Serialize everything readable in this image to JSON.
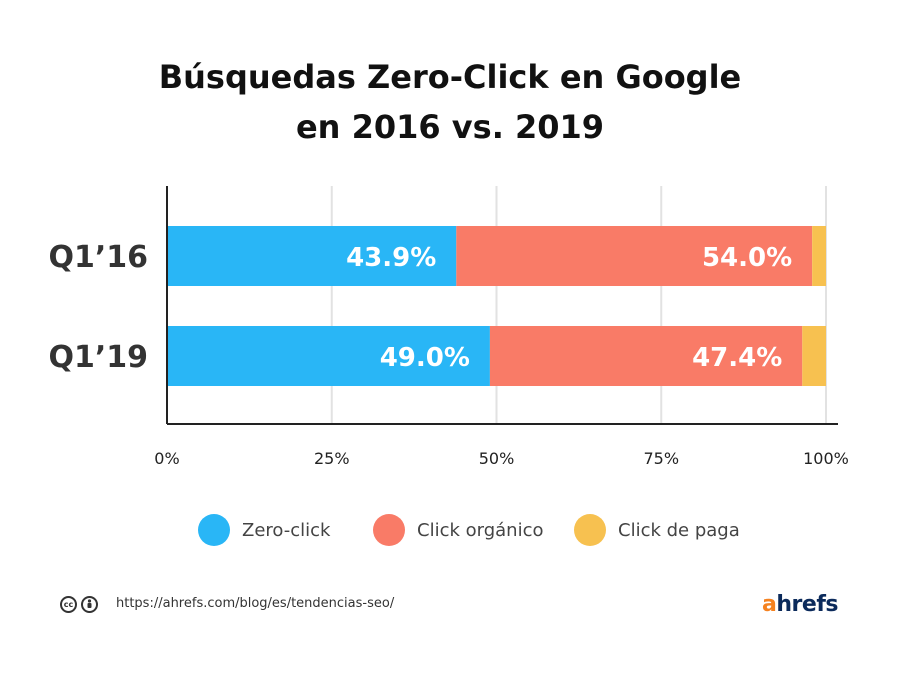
{
  "title_lines": [
    "Búsquedas Zero-Click en Google",
    "en 2016 vs. 2019"
  ],
  "chart_data": {
    "type": "bar",
    "orientation": "horizontal",
    "stacked": true,
    "title": "Búsquedas Zero-Click en Google en 2016 vs. 2019",
    "categories": [
      "Q1’16",
      "Q1’19"
    ],
    "series": [
      {
        "name": "Zero-click",
        "color": "#29b6f6",
        "values": [
          43.9,
          49.0
        ],
        "labels": [
          "43.9%",
          "49.0%"
        ]
      },
      {
        "name": "Click orgánico",
        "color": "#f97b67",
        "values": [
          54.0,
          47.4
        ],
        "labels": [
          "54.0%",
          "47.4%"
        ]
      },
      {
        "name": "Click de paga",
        "color": "#f7c150",
        "values": [
          2.1,
          3.6
        ],
        "labels": [
          "",
          ""
        ]
      }
    ],
    "xlim": [
      0,
      100
    ],
    "xticks": [
      0,
      25,
      50,
      75,
      100
    ],
    "xtick_labels": [
      "0%",
      "25%",
      "50%",
      "75%",
      "100%"
    ],
    "grid": true,
    "legend_position": "bottom"
  },
  "legend": [
    {
      "label": "Zero-click",
      "color": "#29b6f6"
    },
    {
      "label": "Click orgánico",
      "color": "#f97b67"
    },
    {
      "label": "Click de paga",
      "color": "#f7c150"
    }
  ],
  "footer": {
    "source_url": "https://ahrefs.com/blog/es/tendencias-seo/",
    "license_icons": [
      "cc-icon",
      "attribution-icon"
    ],
    "brand": {
      "a": "a",
      "rest": "hrefs"
    }
  }
}
